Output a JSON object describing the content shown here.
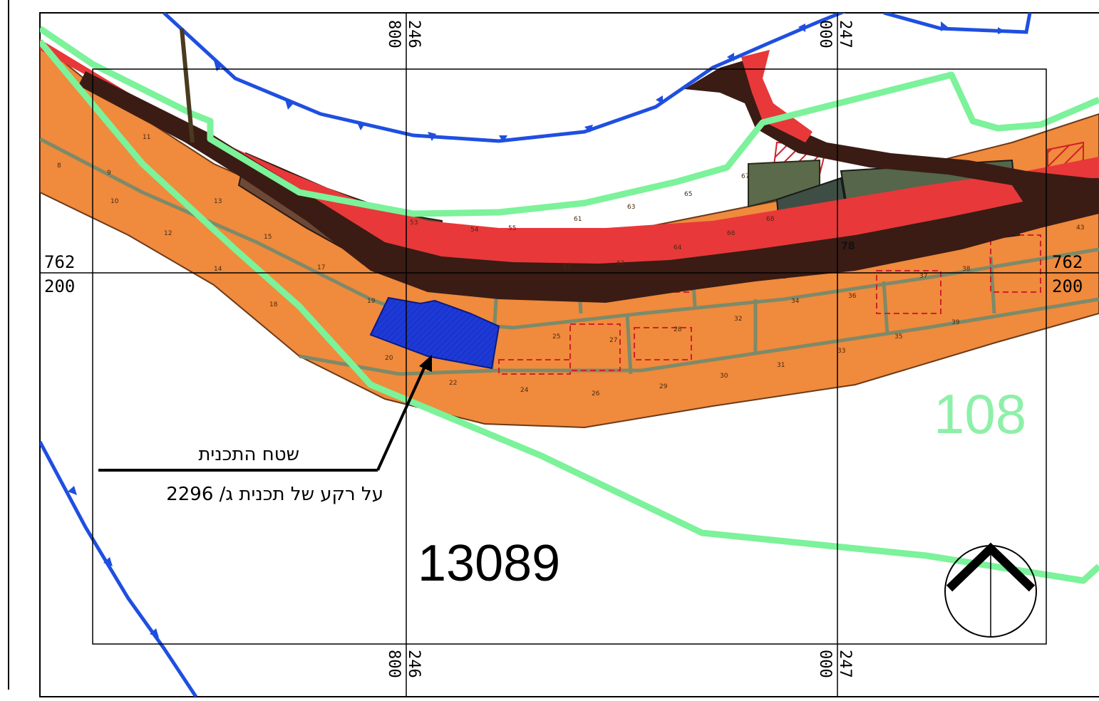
{
  "map": {
    "block_number": "13089",
    "zone_number": "108",
    "legend": {
      "plan_area": "שטח התכנית",
      "background": "על רקע של תכנית ג/ 2296"
    },
    "grid": {
      "top_x1": [
        "246",
        "800"
      ],
      "top_x2": [
        "247",
        "000"
      ],
      "bottom_x1": [
        "246",
        "800"
      ],
      "bottom_x2": [
        "247",
        "000"
      ],
      "left_y": [
        "762",
        "200"
      ],
      "right_y": [
        "762",
        "200"
      ]
    },
    "parcel_numbers": [
      "8",
      "9",
      "10",
      "11",
      "12",
      "13",
      "14",
      "15",
      "17",
      "18",
      "19",
      "20",
      "22",
      "24",
      "25",
      "26",
      "27",
      "28",
      "29",
      "30",
      "31",
      "32",
      "33",
      "34",
      "35",
      "36",
      "37",
      "38",
      "39",
      "43",
      "53",
      "54",
      "55",
      "57",
      "61",
      "62",
      "63",
      "64",
      "65",
      "66",
      "67",
      "68",
      "78"
    ],
    "colors": {
      "plan_area": "#1e3ad6",
      "building_line": "#1f4fe0",
      "zone_boundary": "#7cf29a",
      "parcels": "#f08a3c",
      "road": "#3a1c14",
      "road_edge": "#e8383a"
    },
    "north_arrow": "north-arrow-icon"
  }
}
